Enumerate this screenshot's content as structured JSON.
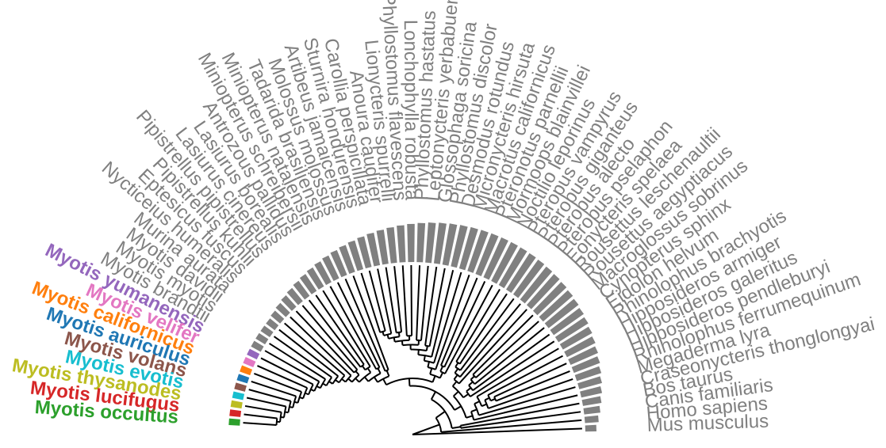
{
  "tree": {
    "tips": [
      {
        "label": "Mus musculus",
        "highlight": false
      },
      {
        "label": "Homo sapiens",
        "highlight": false
      },
      {
        "label": "Canis familiaris",
        "highlight": false
      },
      {
        "label": "Bos taurus",
        "highlight": false
      },
      {
        "label": "Craseonycteris thonglongyai",
        "highlight": false
      },
      {
        "label": "Megaderma lyra",
        "highlight": false
      },
      {
        "label": "Rhinolophus ferrumequinum",
        "highlight": false
      },
      {
        "label": "Hipposideros pendleburyi",
        "highlight": false
      },
      {
        "label": "Hipposideros galeritus",
        "highlight": false
      },
      {
        "label": "Hipposideros armiger",
        "highlight": false
      },
      {
        "label": "Rhinolophus brachyotis",
        "highlight": false
      },
      {
        "label": "Eidolon helvum",
        "highlight": false
      },
      {
        "label": "Cynopterus sphinx",
        "highlight": false
      },
      {
        "label": "Macroglossus sobrinus",
        "highlight": false
      },
      {
        "label": "Rousettus aegyptiacus",
        "highlight": false
      },
      {
        "label": "Rousettus leschenaultii",
        "highlight": false
      },
      {
        "label": "Eonycteris spelaea",
        "highlight": false
      },
      {
        "label": "Pteropus pselaphon",
        "highlight": false
      },
      {
        "label": "Pteropus alecto",
        "highlight": false
      },
      {
        "label": "Pteropus giganteus",
        "highlight": false
      },
      {
        "label": "Pteropus vampyrus",
        "highlight": false
      },
      {
        "label": "Noctilio leporinus",
        "highlight": false
      },
      {
        "label": "Mormoops blainvillei",
        "highlight": false
      },
      {
        "label": "Pteronotus parnellii",
        "highlight": false
      },
      {
        "label": "Macrotus californicus",
        "highlight": false
      },
      {
        "label": "Micronycteris hirsuta",
        "highlight": false
      },
      {
        "label": "Desmodus rotundus",
        "highlight": false
      },
      {
        "label": "Phyllostomus discolor",
        "highlight": false
      },
      {
        "label": "Glossophaga soricina",
        "highlight": false
      },
      {
        "label": "Leptonycteris yerbabuenae",
        "highlight": false
      },
      {
        "label": "Phyllostomus hastatus",
        "highlight": false
      },
      {
        "label": "Lonchophylla robusta",
        "highlight": false
      },
      {
        "label": "Phyllostomus flavescens",
        "highlight": false
      },
      {
        "label": "Lionycteris spurrelli",
        "highlight": false
      },
      {
        "label": "Anoura caudifer",
        "highlight": false
      },
      {
        "label": "Carollia perspicillata",
        "highlight": false
      },
      {
        "label": "Sturnira hondurensis",
        "highlight": false
      },
      {
        "label": "Artibeus jamaicensis",
        "highlight": false
      },
      {
        "label": "Molossus molossus",
        "highlight": false
      },
      {
        "label": "Tadarida brasiliensis",
        "highlight": false
      },
      {
        "label": "Miniopterus natalensis",
        "highlight": false
      },
      {
        "label": "Miniopterus schreibersii",
        "highlight": false
      },
      {
        "label": "Antrozous pallidus",
        "highlight": false
      },
      {
        "label": "Lasiurus borealis",
        "highlight": false
      },
      {
        "label": "Lasiurus cinereus",
        "highlight": false
      },
      {
        "label": "Pipistrellus pipistrellus",
        "highlight": false
      },
      {
        "label": "Pipistrellus kuhlii",
        "highlight": false
      },
      {
        "label": "Eptesicus fuscus",
        "highlight": false
      },
      {
        "label": "Nycticeius humeralis",
        "highlight": false
      },
      {
        "label": "Murina aurata",
        "highlight": false
      },
      {
        "label": "Myotis davidii",
        "highlight": false
      },
      {
        "label": "Myotis myotis",
        "highlight": false
      },
      {
        "label": "Myotis brandtii",
        "highlight": false
      },
      {
        "label": "Myotis yumanensis",
        "highlight": true,
        "color": "#9467bd"
      },
      {
        "label": "Myotis velifer",
        "highlight": true,
        "color": "#e377c2"
      },
      {
        "label": "Myotis californicus",
        "highlight": true,
        "color": "#ff7f0e"
      },
      {
        "label": "Myotis auriculus",
        "highlight": true,
        "color": "#1f77b4"
      },
      {
        "label": "Myotis volans",
        "highlight": true,
        "color": "#8c564b"
      },
      {
        "label": "Myotis evotis",
        "highlight": true,
        "color": "#17becf"
      },
      {
        "label": "Myotis thysanodes",
        "highlight": true,
        "color": "#bcbd22"
      },
      {
        "label": "Myotis lucifugus",
        "highlight": true,
        "color": "#d62728"
      },
      {
        "label": "Myotis occultus",
        "highlight": true,
        "color": "#2ca02c"
      }
    ],
    "colors": {
      "label_grey": "#808080",
      "bar_grey": "#808080",
      "branch": "#000000"
    }
  }
}
